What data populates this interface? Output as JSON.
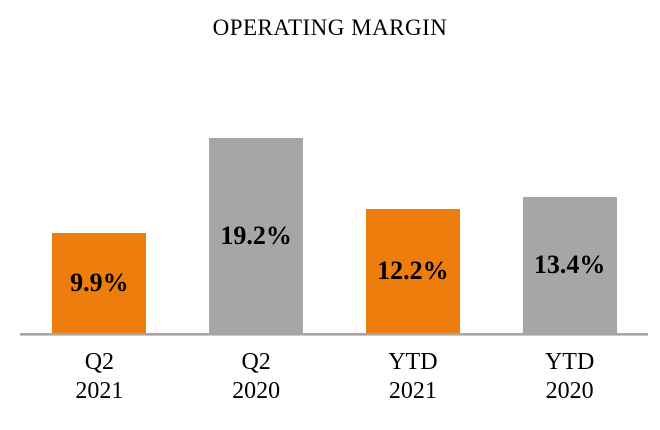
{
  "chart_data": {
    "type": "bar",
    "title": "OPERATING MARGIN",
    "unit": "%",
    "categories": [
      {
        "line1": "Q2",
        "line2": "2021"
      },
      {
        "line1": "Q2",
        "line2": "2020"
      },
      {
        "line1": "YTD",
        "line2": "2021"
      },
      {
        "line1": "YTD",
        "line2": "2020"
      }
    ],
    "values": [
      9.9,
      19.2,
      12.2,
      13.4
    ],
    "data_labels": [
      "9.9%",
      "19.2%",
      "12.2%",
      "13.4%"
    ],
    "bar_colors": [
      "#ED7D0C",
      "#A6A6A6",
      "#ED7D0C",
      "#A6A6A6"
    ],
    "colors": {
      "current_period_accent": "#ED7D0C",
      "prior_period_accent": "#A6A6A6",
      "axis_line": "#A6A6A6",
      "text": "#000000",
      "background": "#FFFFFF"
    },
    "ylim": [
      0,
      32.8
    ],
    "xlabel": "",
    "ylabel": "",
    "gridlines": false,
    "legend_position": "none",
    "data_label_position": "center"
  }
}
